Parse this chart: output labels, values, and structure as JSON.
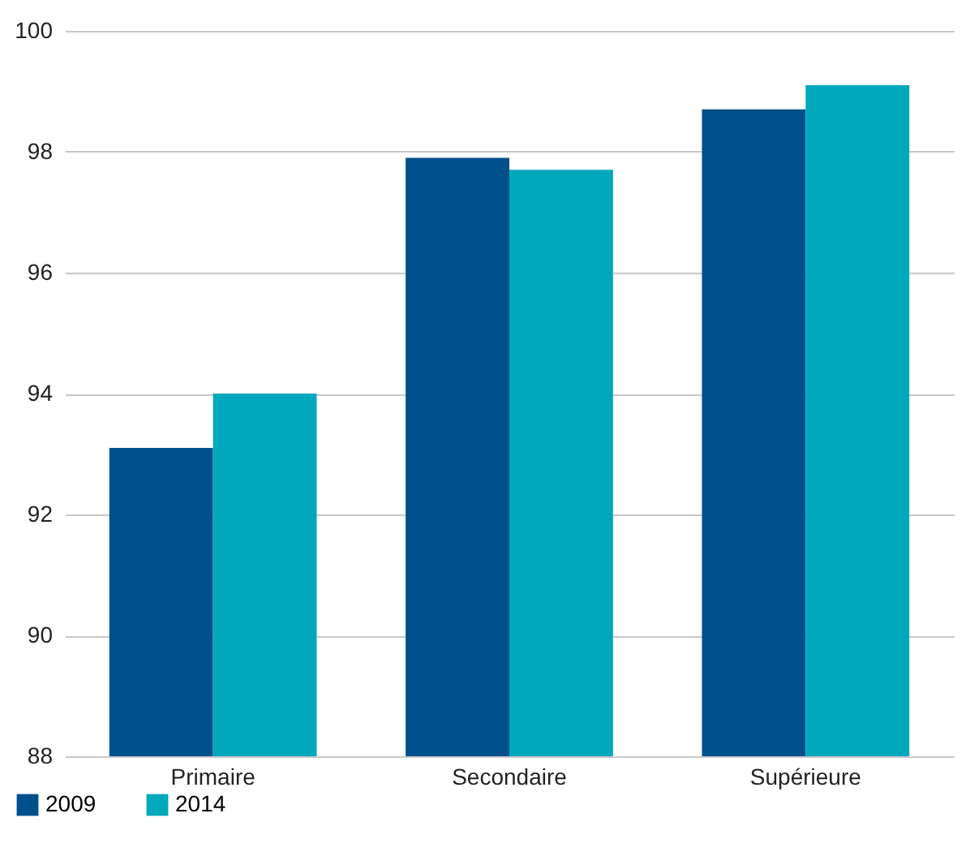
{
  "chart_data": {
    "type": "bar",
    "categories": [
      "Primaire",
      "Secondaire",
      "Supérieure"
    ],
    "series": [
      {
        "name": "2009",
        "color": "#00508c",
        "values": [
          93.1,
          97.9,
          98.7
        ]
      },
      {
        "name": "2014",
        "color": "#00a8bc",
        "values": [
          94.0,
          97.7,
          99.1
        ]
      }
    ],
    "ylim": [
      88,
      100
    ],
    "yticks": [
      88,
      90,
      92,
      94,
      96,
      98,
      100
    ],
    "grid": "y",
    "legend": "bottom left"
  }
}
